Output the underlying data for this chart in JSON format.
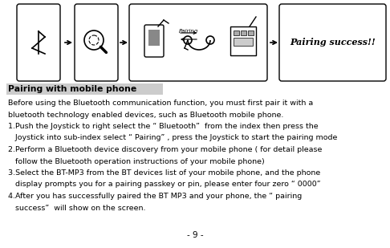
{
  "bg_color": "#ffffff",
  "title": "Pairing with mobile phone",
  "title_bg": "#cccccc",
  "page_number": "- 9 -",
  "body_lines": [
    [
      "Before using the Bluetooth communication function, you must first pair it with a",
      false
    ],
    [
      "bluetooth technology enabled devices, such as Bluetooth mobile phone.",
      false
    ],
    [
      "1.Push the Joystick to right select the “ Bluetooth”  from the index then press the",
      false
    ],
    [
      "   Joystick into sub-index select “ Pairing” , press the Joystick to start the pairing mode",
      false
    ],
    [
      "2.Perform a Bluetooth device discovery from your mobile phone ( for detail please",
      false
    ],
    [
      "   follow the Bluetooth operation instructions of your mobile phone)",
      false
    ],
    [
      "3.Select the BT-MP3 from the BT devices list of your mobile phone, and the phone",
      false
    ],
    [
      "   display prompts you for a pairing passkey or pin, please enter four zero “ 0000”",
      false
    ],
    [
      "4.After you has successfully paired the BT MP3 and your phone, the “ pairing",
      false
    ],
    [
      "   success”  will show on the screen.",
      false
    ]
  ],
  "pairing_success_text": "Pairing success!!",
  "font_size_body": 6.8,
  "font_size_title": 7.8,
  "font_size_page": 7.5,
  "pairing_label": "Pairing"
}
